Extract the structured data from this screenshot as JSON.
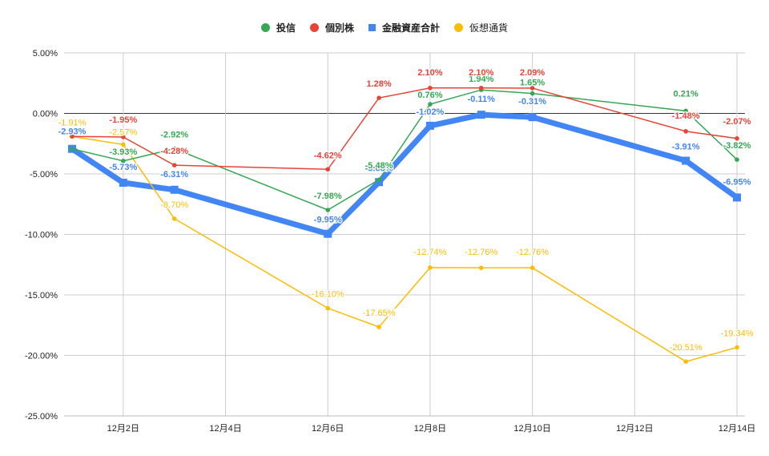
{
  "chart_data": {
    "type": "line",
    "title": "",
    "xlabel": "",
    "ylabel": "",
    "ylim": [
      -25,
      5
    ],
    "yticks": [
      "5.00%",
      "0.00%",
      "-5.00%",
      "-10.00%",
      "-15.00%",
      "-20.00%",
      "-25.00%"
    ],
    "ytick_values": [
      5,
      0,
      -5,
      -10,
      -15,
      -20,
      -25
    ],
    "xticks": [
      "12月2日",
      "12月4日",
      "12月6日",
      "12月8日",
      "12月10日",
      "12月12日",
      "12月14日"
    ],
    "xtick_days": [
      2,
      4,
      6,
      8,
      10,
      12,
      14
    ],
    "x_days": [
      1,
      2,
      3,
      6,
      7,
      8,
      9,
      10,
      13,
      14
    ],
    "grid": true,
    "legend_position": "top",
    "series": [
      {
        "name": "投信",
        "color": "#34a853",
        "marker": "circle",
        "width": 1.5,
        "values": [
          -2.93,
          -3.93,
          -2.92,
          -7.98,
          -5.48,
          0.76,
          1.94,
          1.65,
          0.21,
          -3.82
        ],
        "labels": [
          "",
          "-3.93%",
          "-2.92%",
          "-7.98%",
          "-5.48%",
          "0.76%",
          "1.94%",
          "1.65%",
          "0.21%",
          "-3.82%"
        ]
      },
      {
        "name": "個別株",
        "color": "#ea4335",
        "marker": "circle",
        "width": 1.5,
        "values": [
          -1.9,
          -1.95,
          -4.28,
          -4.62,
          1.28,
          2.1,
          2.1,
          2.09,
          -1.48,
          -2.07
        ],
        "labels": [
          "",
          "-1.95%",
          "-4.28%",
          "-4.62%",
          "1.28%",
          "2.10%",
          "2.10%",
          "2.09%",
          "-1.48%",
          "-2.07%"
        ]
      },
      {
        "name": "金融資産合計",
        "color": "#4285f4",
        "marker": "square",
        "width": 7,
        "values": [
          -2.93,
          -5.73,
          -6.31,
          -9.95,
          -5.68,
          -1.02,
          -0.11,
          -0.31,
          -3.91,
          -6.95
        ],
        "labels": [
          "-2.93%",
          "-5.73%",
          "-6.31%",
          "-9.95%",
          "-5.68%",
          "-1.02%",
          "-0.11%",
          "-0.31%",
          "-3.91%",
          "-6.95%"
        ]
      },
      {
        "name": "仮想通貨",
        "color": "#fbbc04",
        "marker": "circle",
        "width": 1.5,
        "values": [
          -1.91,
          -2.57,
          -8.7,
          -16.1,
          -17.65,
          -12.74,
          -12.76,
          -12.76,
          -20.51,
          -19.34
        ],
        "labels": [
          "-1.91%",
          "-2.57%",
          "-8.70%",
          "-16.10%",
          "-17.65%",
          "-12.74%",
          "-12.76%",
          "-12.76%",
          "-20.51%",
          "-19.34%"
        ]
      }
    ]
  },
  "legend": {
    "items": [
      {
        "label": "投信",
        "color": "#34a853",
        "shape": "circle"
      },
      {
        "label": "個別株",
        "color": "#ea4335",
        "shape": "circle"
      },
      {
        "label": "金融資産合計",
        "color": "#4285f4",
        "shape": "square"
      },
      {
        "label": "仮想通貨",
        "color": "#fbbc04",
        "shape": "circle"
      }
    ]
  }
}
